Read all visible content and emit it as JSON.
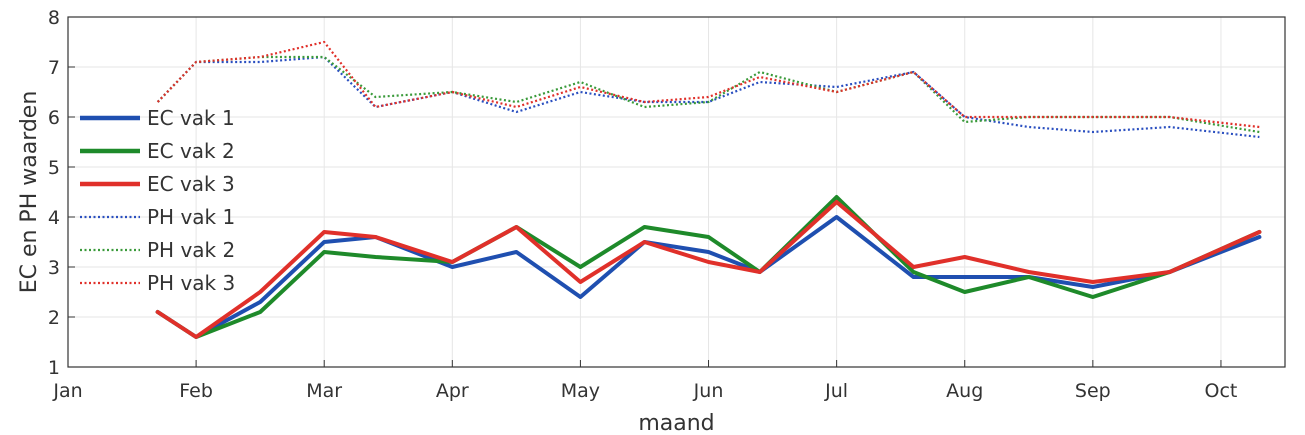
{
  "chart_data": {
    "type": "line",
    "title": "",
    "xlabel": "maand",
    "ylabel": "EC en PH waarden",
    "xlim": [
      1,
      10.5
    ],
    "ylim": [
      1,
      8
    ],
    "grid": true,
    "legend_position": "left",
    "x_ticks": [
      {
        "x": 1,
        "label": "Jan"
      },
      {
        "x": 2,
        "label": "Feb"
      },
      {
        "x": 3,
        "label": "Mar"
      },
      {
        "x": 4,
        "label": "Apr"
      },
      {
        "x": 5,
        "label": "May"
      },
      {
        "x": 6,
        "label": "Jun"
      },
      {
        "x": 7,
        "label": "Jul"
      },
      {
        "x": 8,
        "label": "Aug"
      },
      {
        "x": 9,
        "label": "Sep"
      },
      {
        "x": 10,
        "label": "Oct"
      }
    ],
    "y_ticks": [
      {
        "y": 1,
        "label": "1"
      },
      {
        "y": 2,
        "label": "2"
      },
      {
        "y": 3,
        "label": "3"
      },
      {
        "y": 4,
        "label": "4"
      },
      {
        "y": 5,
        "label": "5"
      },
      {
        "y": 6,
        "label": "6"
      },
      {
        "y": 7,
        "label": "7"
      },
      {
        "y": 8,
        "label": "8"
      }
    ],
    "x": [
      1.7,
      2.0,
      2.5,
      3.0,
      3.4,
      4.0,
      4.5,
      5.0,
      5.5,
      6.0,
      6.4,
      7.0,
      7.6,
      8.0,
      8.5,
      9.0,
      9.6,
      10.3
    ],
    "series": [
      {
        "name": "EC vak 1",
        "color": "#1f4fb0",
        "style": "solid",
        "values": [
          2.1,
          1.6,
          2.3,
          3.5,
          3.6,
          3.0,
          3.3,
          2.4,
          3.5,
          3.3,
          2.9,
          4.0,
          2.8,
          2.8,
          2.8,
          2.6,
          2.9,
          3.6
        ]
      },
      {
        "name": "EC vak 2",
        "color": "#1e8a2a",
        "style": "solid",
        "values": [
          2.1,
          1.6,
          2.1,
          3.3,
          3.2,
          3.1,
          3.8,
          3.0,
          3.8,
          3.6,
          2.9,
          4.4,
          2.9,
          2.5,
          2.8,
          2.4,
          2.9,
          3.7
        ]
      },
      {
        "name": "EC vak 3",
        "color": "#e0302a",
        "style": "solid",
        "values": [
          2.1,
          1.6,
          2.5,
          3.7,
          3.6,
          3.1,
          3.8,
          2.7,
          3.5,
          3.1,
          2.9,
          4.3,
          3.0,
          3.2,
          2.9,
          2.7,
          2.9,
          3.7
        ]
      },
      {
        "name": "PH vak 1",
        "color": "#2a4fc0",
        "style": "dotted",
        "values": [
          6.3,
          7.1,
          7.1,
          7.2,
          6.2,
          6.5,
          6.1,
          6.5,
          6.3,
          6.3,
          6.7,
          6.6,
          6.9,
          6.0,
          5.8,
          5.7,
          5.8,
          5.6
        ]
      },
      {
        "name": "PH vak 2",
        "color": "#3a9a3a",
        "style": "dotted",
        "values": [
          6.3,
          7.1,
          7.2,
          7.2,
          6.4,
          6.5,
          6.3,
          6.7,
          6.2,
          6.3,
          6.9,
          6.5,
          6.9,
          5.9,
          6.0,
          6.0,
          6.0,
          5.7
        ]
      },
      {
        "name": "PH vak 3",
        "color": "#e0302a",
        "style": "dotted",
        "values": [
          6.3,
          7.1,
          7.2,
          7.5,
          6.2,
          6.5,
          6.2,
          6.6,
          6.3,
          6.4,
          6.8,
          6.5,
          6.9,
          6.0,
          6.0,
          6.0,
          6.0,
          5.8
        ]
      }
    ]
  }
}
